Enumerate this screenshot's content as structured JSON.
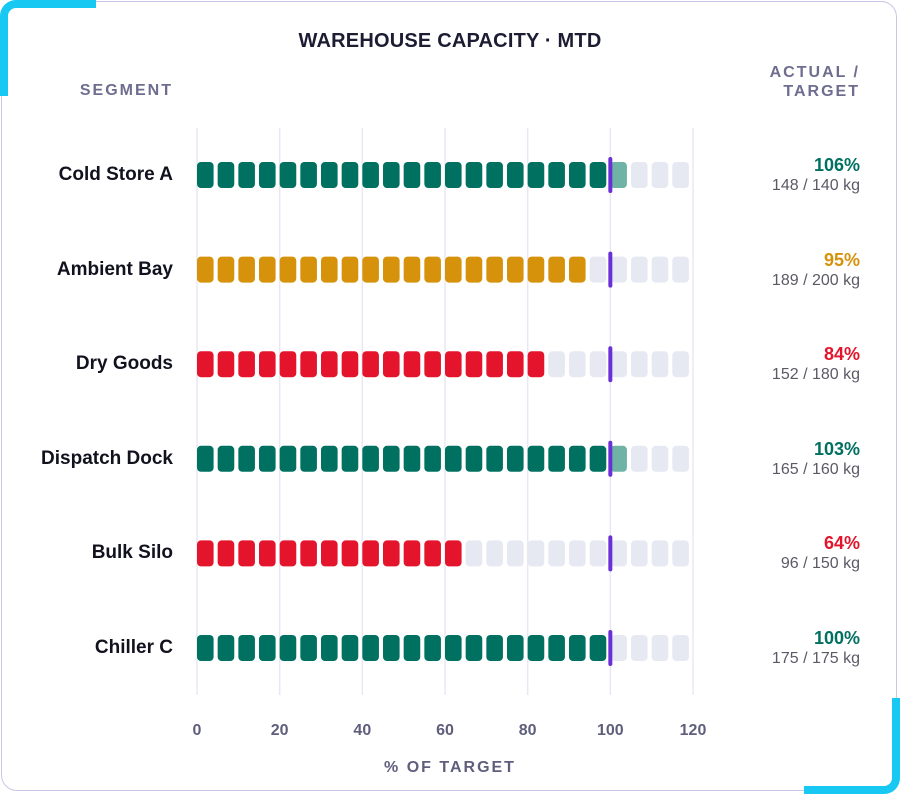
{
  "title": "WAREHOUSE CAPACITY · MTD",
  "segment_header": "SEGMENT",
  "actual_header_line1": "ACTUAL /",
  "actual_header_line2": "TARGET",
  "colors": {
    "above_target": "#007060",
    "above_target_overflow": "#6fb3a6",
    "near_target": "#d6920b",
    "below_target": "#e3142b",
    "empty_block": "#e6e9f2",
    "target_marker": "#6b2fd6",
    "gridline": "#e8e8f3",
    "accent": "#16c8f2"
  },
  "chart_data": {
    "type": "bar",
    "title": "WAREHOUSE CAPACITY · MTD",
    "xlabel": "% OF TARGET",
    "ylabel": "SEGMENT",
    "xlim": [
      0,
      120
    ],
    "xticks": [
      0,
      20,
      40,
      60,
      80,
      100,
      120
    ],
    "target": 100,
    "grid": true,
    "categories": [
      "Cold Store A",
      "Ambient Bay",
      "Dry Goods",
      "Dispatch Dock",
      "Bulk Silo",
      "Chiller C"
    ],
    "values": [
      106,
      95,
      84,
      103,
      64,
      100
    ],
    "pct_labels": [
      "106%",
      "95%",
      "84%",
      "103%",
      "64%",
      "100%"
    ],
    "actual_target_labels": [
      "148 / 140 kg",
      "189 / 200 kg",
      "152 / 180 kg",
      "165 / 160 kg",
      "96 / 150 kg",
      "175 / 175 kg"
    ],
    "status": [
      "above",
      "near",
      "below",
      "above",
      "below",
      "above"
    ],
    "unit": "kg"
  }
}
